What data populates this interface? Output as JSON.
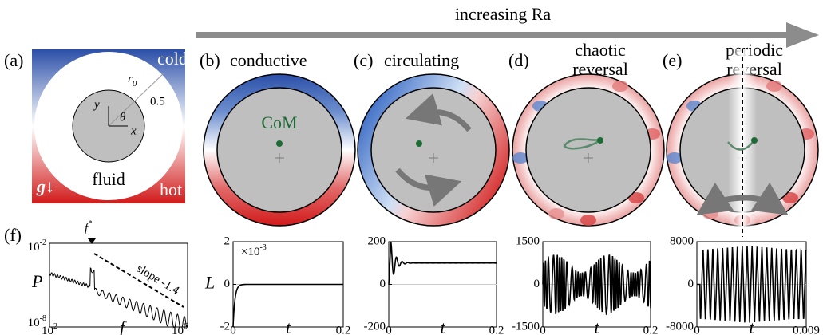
{
  "header": {
    "title": "increasing Ra"
  },
  "panel_a": {
    "label": "(a)",
    "cold": "cold",
    "hot": "hot",
    "fluid": "fluid",
    "gravity": "g↓",
    "radius": {
      "base": "r",
      "sub": "0"
    },
    "radius_value": "0.5",
    "y_axis": "y",
    "x_axis": "x",
    "angle": "θ"
  },
  "panels": [
    {
      "label": "(b)",
      "title": [
        "conductive"
      ],
      "annotation": "CoM"
    },
    {
      "label": "(c)",
      "title": [
        "circulating"
      ]
    },
    {
      "label": "(d)",
      "title": [
        "chaotic",
        "reversal"
      ]
    },
    {
      "label": "(e)",
      "title": [
        "periodic",
        "reversal"
      ]
    }
  ],
  "plots": [
    {
      "ylabel": "L",
      "xlabel": "t",
      "multiplier": {
        "base": "×10",
        "exp": "-3"
      },
      "xlim": [
        0,
        0.2
      ],
      "xticks": [
        0,
        0.2
      ],
      "ylim": [
        -2,
        2
      ],
      "yticks": [
        -2,
        0,
        2
      ]
    },
    {
      "xlabel": "t",
      "xlim": [
        0,
        0.2
      ],
      "xticks": [
        0,
        0.2
      ],
      "ylim": [
        -200,
        200
      ],
      "yticks": [
        -200,
        0,
        200
      ]
    },
    {
      "xlabel": "t",
      "xlim": [
        0,
        0.2
      ],
      "xticks": [
        0,
        0.2
      ],
      "ylim": [
        -1500,
        1500
      ],
      "yticks": [
        -1500,
        0,
        1500
      ]
    },
    {
      "xlabel": "t",
      "xlim": [
        0,
        0.009
      ],
      "xticks": [
        0,
        0.009
      ],
      "ylim": [
        -8000,
        8000
      ],
      "yticks": [
        -8000,
        0,
        8000
      ]
    }
  ],
  "spectrum": {
    "label": "(f)",
    "ylabel": "P",
    "xlabel": "f",
    "peak": {
      "base": "f",
      "exp": "*"
    },
    "slope": "slope -1.4",
    "xticks": [
      {
        "base": "10",
        "exp": "2"
      },
      {
        "base": "10",
        "exp": "6"
      }
    ],
    "yticks": [
      {
        "base": "10",
        "exp": "-2"
      },
      {
        "base": "10",
        "exp": "-8"
      }
    ]
  }
}
